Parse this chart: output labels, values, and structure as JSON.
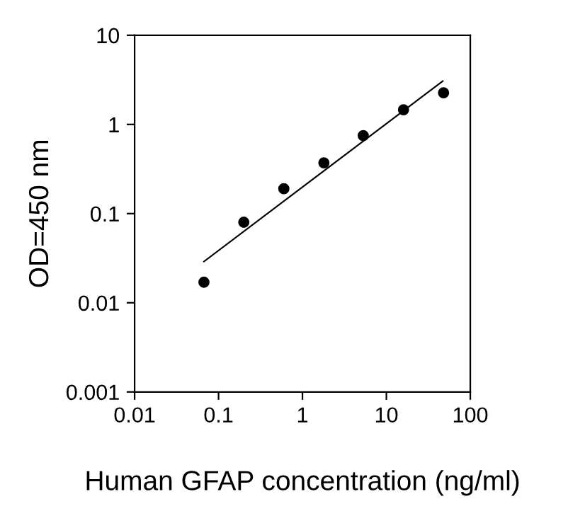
{
  "chart_data": {
    "type": "scatter",
    "xlabel": "Human GFAP concentration (ng/ml)",
    "ylabel": "OD=450 nm",
    "log": "xy",
    "grid": false,
    "x": [
      0.067,
      0.2,
      0.6,
      1.8,
      5.3,
      16,
      48
    ],
    "series": [
      {
        "marker": "circle",
        "color": "#000000",
        "values": [
          0.017,
          0.08,
          0.19,
          0.37,
          0.75,
          1.46,
          2.26
        ]
      },
      {
        "type": "line",
        "marker": "none",
        "color": "#000000",
        "x": [
          0.067,
          47
        ],
        "values": [
          0.029,
          3.07
        ]
      }
    ],
    "xlim": [
      0.01,
      100
    ],
    "xticks": [
      0.01,
      0.1,
      1,
      10,
      100
    ],
    "ylim": [
      0.001,
      10
    ],
    "yticks": [
      0.001,
      0.01,
      0.1,
      1,
      10
    ]
  }
}
